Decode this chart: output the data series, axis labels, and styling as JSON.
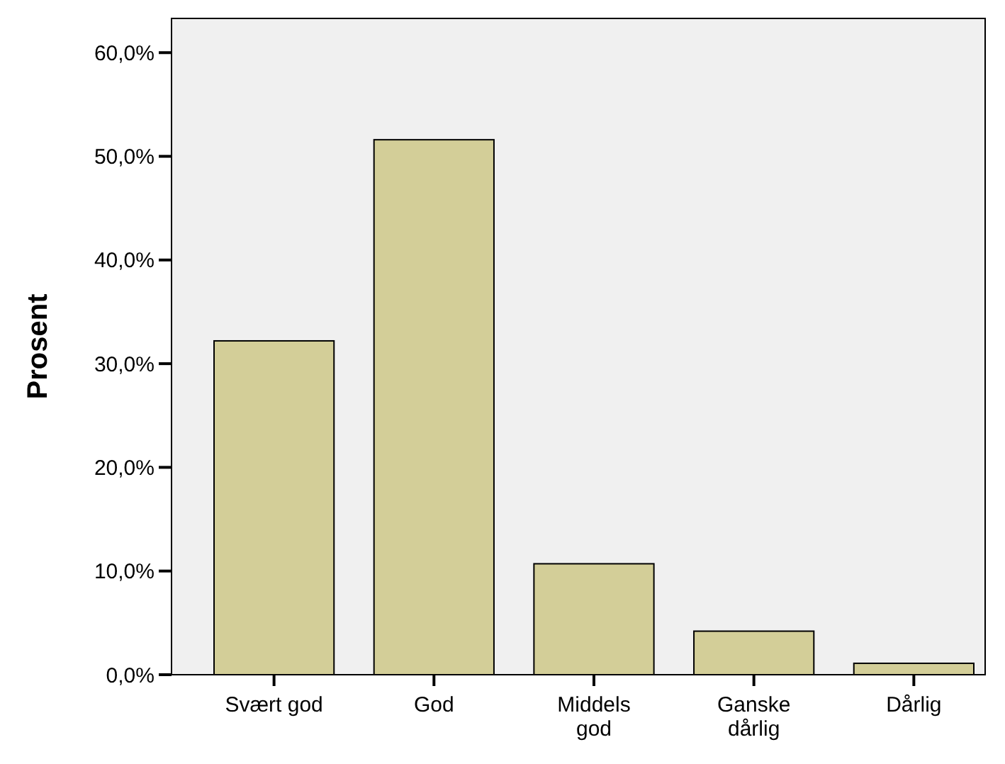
{
  "chart_data": {
    "type": "bar",
    "ylabel": "Prosent",
    "categories": [
      "Svært god",
      "God",
      "Middels\ngod",
      "Ganske\ndårlig",
      "Dårlig"
    ],
    "values": [
      32.2,
      51.6,
      10.7,
      4.2,
      1.1
    ],
    "color": "#d3ce98",
    "ylim": [
      0,
      63.3
    ],
    "yticks": [
      {
        "value": 0,
        "label": "0,0%"
      },
      {
        "value": 10,
        "label": "10,0%"
      },
      {
        "value": 20,
        "label": "20,0%"
      },
      {
        "value": 30,
        "label": "30,0%"
      },
      {
        "value": 40,
        "label": "40,0%"
      },
      {
        "value": 50,
        "label": "50,0%"
      },
      {
        "value": 60,
        "label": "60,0%"
      }
    ],
    "grid": false
  }
}
